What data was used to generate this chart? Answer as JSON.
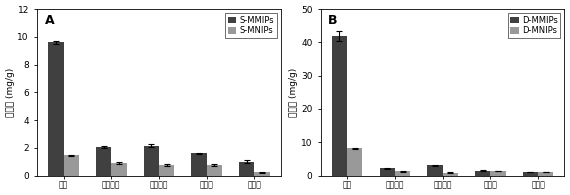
{
  "panel_A": {
    "label": "A",
    "categories": [
      "苯酰",
      "丙酸苯酰",
      "甲基苯酰",
      "雌二醇",
      "黄体酰"
    ],
    "mmips_values": [
      9.6,
      2.05,
      2.15,
      1.6,
      1.0
    ],
    "mnips_values": [
      1.45,
      0.9,
      0.75,
      0.75,
      0.25
    ],
    "mmips_errors": [
      0.1,
      0.05,
      0.1,
      0.05,
      0.1
    ],
    "mnips_errors": [
      0.05,
      0.05,
      0.05,
      0.05,
      0.03
    ],
    "mmips_label": "S-MMIPs",
    "mnips_label": "S-MNIPs",
    "ylabel": "吸附量 (mg/g)",
    "ylim": [
      0,
      12
    ],
    "yticks": [
      0,
      2,
      4,
      6,
      8,
      10,
      12
    ]
  },
  "panel_B": {
    "label": "B",
    "categories": [
      "素酰",
      "丙酸素酰",
      "甲基素酰",
      "雌二醇",
      "黄体酰"
    ],
    "mmips_values": [
      42.0,
      2.2,
      3.1,
      1.5,
      1.0
    ],
    "mnips_values": [
      8.2,
      1.3,
      0.9,
      1.4,
      1.0
    ],
    "mmips_errors": [
      1.5,
      0.1,
      0.15,
      0.05,
      0.05
    ],
    "mnips_errors": [
      0.15,
      0.1,
      0.05,
      0.1,
      0.05
    ],
    "mmips_label": "D-MMIPs",
    "mnips_label": "D-MNIPs",
    "ylabel": "吸附量 (mg/g)",
    "ylim": [
      0,
      50
    ],
    "yticks": [
      0,
      10,
      20,
      30,
      40,
      50
    ]
  },
  "bar_width": 0.32,
  "mmips_color": "#404040",
  "mnips_color": "#999999",
  "bg_color": "#ffffff",
  "font_size": 6.5,
  "label_font_size": 9,
  "tick_label_size": 5.5
}
